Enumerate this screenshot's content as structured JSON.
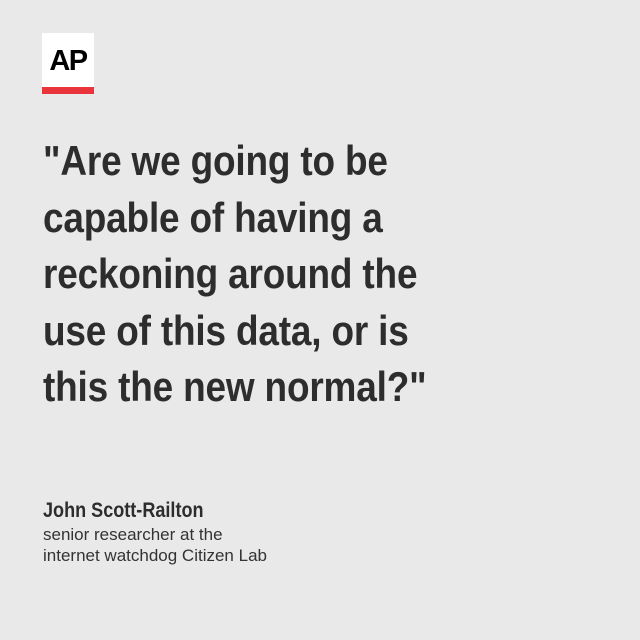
{
  "logo": {
    "text": "AP",
    "background_color": "#ffffff",
    "text_color": "#000000",
    "underline_color": "#e8343a"
  },
  "quote": {
    "lines": [
      "\"Are we going to be",
      "capable of having a",
      "reckoning around the",
      "use of this data, or is",
      "this the new normal?\""
    ]
  },
  "attribution": {
    "name": "John Scott-Railton",
    "title_lines": [
      "senior researcher at the",
      "internet watchdog Citizen Lab"
    ]
  },
  "colors": {
    "background": "#e9e9e9",
    "text": "#2d2d2d"
  }
}
